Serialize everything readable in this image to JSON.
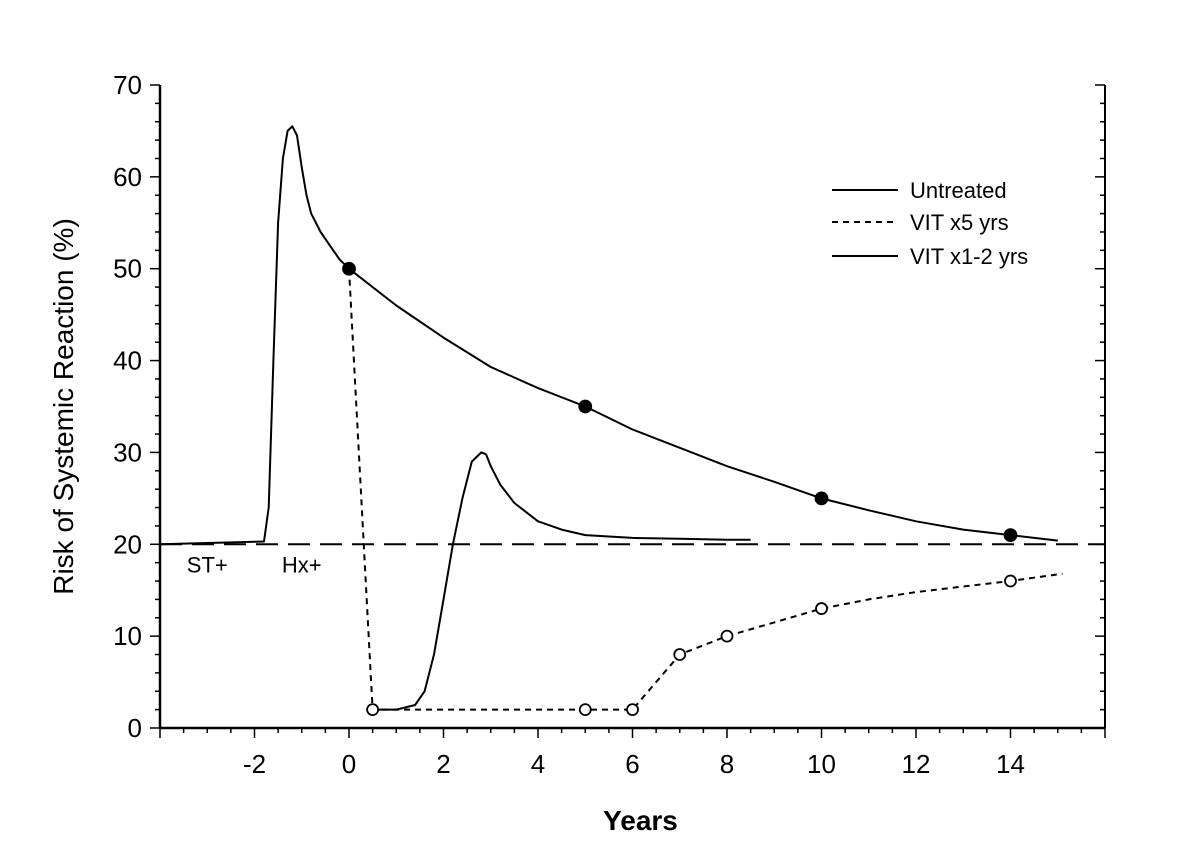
{
  "chart_data": {
    "type": "line",
    "xlabel": "Years",
    "ylabel": "Risk of Systemic Reaction (%)",
    "xlim": [
      -4,
      16
    ],
    "ylim": [
      0,
      70
    ],
    "x_ticks": [
      -2,
      0,
      2,
      4,
      6,
      8,
      10,
      12,
      14
    ],
    "y_ticks": [
      0,
      10,
      20,
      30,
      40,
      50,
      60,
      70
    ],
    "grid": false,
    "legend_position": "top-right",
    "reference_line": {
      "y": 20,
      "style": "dashed"
    },
    "annotations": [
      {
        "text": "ST+",
        "x": -3.0,
        "y": 18
      },
      {
        "text": "Hx+",
        "x": -1.0,
        "y": 18
      }
    ],
    "series": [
      {
        "name": "Untreated",
        "style": "solid",
        "x": [
          -4,
          -1.8,
          -1.7,
          -1.6,
          -1.5,
          -1.4,
          -1.3,
          -1.2,
          -1.1,
          -1.0,
          -0.9,
          -0.8,
          -0.6,
          -0.4,
          -0.2,
          0,
          1,
          2,
          3,
          4,
          5,
          6,
          7,
          8,
          9,
          10,
          11,
          12,
          13,
          14,
          15
        ],
        "y": [
          20,
          20.3,
          24,
          40,
          55,
          62,
          65,
          65.5,
          64.5,
          61,
          58,
          56,
          54,
          52.5,
          51,
          50,
          46,
          42.5,
          39.3,
          37,
          35,
          32.5,
          30.5,
          28.5,
          26.8,
          25,
          23.7,
          22.5,
          21.6,
          21,
          20.4
        ],
        "marker_x": [
          0,
          5,
          10,
          14
        ],
        "marker_y": [
          50,
          35,
          25,
          21
        ],
        "marker": "filled-circle"
      },
      {
        "name": "VIT x5 yrs",
        "style": "dashed",
        "x": [
          0,
          0.5,
          1,
          2,
          3,
          4,
          5,
          6,
          7,
          8,
          9,
          10,
          11,
          12,
          13,
          14,
          15.1
        ],
        "y": [
          50,
          2,
          2,
          2,
          2,
          2,
          2,
          2,
          8,
          10,
          11.5,
          13,
          14,
          14.8,
          15.4,
          16,
          16.8
        ],
        "marker_x": [
          0.5,
          5,
          6,
          7,
          8,
          10,
          14
        ],
        "marker_y": [
          2,
          2,
          2,
          8,
          10,
          13,
          16
        ],
        "marker": "open-circle"
      },
      {
        "name": "VIT x1-2 yrs",
        "style": "solid",
        "x": [
          0.5,
          1.0,
          1.4,
          1.6,
          1.8,
          2.0,
          2.2,
          2.4,
          2.6,
          2.8,
          2.9,
          3.0,
          3.2,
          3.5,
          4,
          4.5,
          5,
          6,
          7,
          8,
          8.5
        ],
        "y": [
          2,
          2,
          2.5,
          4,
          8,
          14,
          20,
          25,
          29,
          30,
          29.8,
          28.5,
          26.5,
          24.5,
          22.5,
          21.6,
          21,
          20.7,
          20.6,
          20.5,
          20.5
        ]
      }
    ]
  }
}
